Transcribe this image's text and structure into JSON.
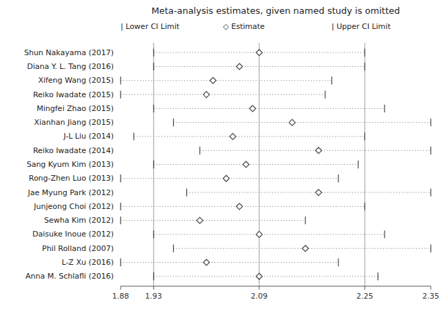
{
  "chart_data": {
    "type": "forest",
    "title": "Meta-analysis estimates, given named study is omitted",
    "categories": [
      "Shun Nakayama (2017)",
      "Diana Y. L. Tang (2016)",
      "Xifeng Wang (2015)",
      "Reiko Iwadate (2015)",
      "Mingfei Zhao (2015)",
      "Xianhan Jiang (2015)",
      "J-L Liu (2014)",
      "Reiko Iwadate (2014)",
      "Sang Kyum Kim (2013)",
      "Rong-Zhen Luo (2013)",
      "Jae Myung Park (2012)",
      "Junjeong Choi (2012)",
      "Sewha Kim (2012)",
      "Daisuke Inoue (2012)",
      "Phil Rolland (2007)",
      "L-Z Xu (2016)",
      "Anna M. Schlafli (2016)"
    ],
    "series": [
      {
        "name": "| Lower CI Limit",
        "marker": "tick",
        "color": "#444444",
        "values": [
          1.93,
          1.93,
          1.88,
          1.88,
          1.93,
          1.96,
          1.9,
          2.0,
          1.93,
          1.88,
          1.98,
          1.88,
          1.88,
          1.93,
          1.96,
          1.88,
          1.93
        ]
      },
      {
        "name": "◇ Estimate",
        "marker": "diamond",
        "color": "#444444",
        "values": [
          2.09,
          2.06,
          2.02,
          2.01,
          2.08,
          2.14,
          2.05,
          2.18,
          2.07,
          2.04,
          2.18,
          2.06,
          2.0,
          2.09,
          2.16,
          2.01,
          2.09
        ]
      },
      {
        "name": "| Upper CI Limit",
        "marker": "tick",
        "color": "#444444",
        "values": [
          2.25,
          2.25,
          2.2,
          2.19,
          2.28,
          2.35,
          2.25,
          2.35,
          2.24,
          2.21,
          2.35,
          2.25,
          2.16,
          2.28,
          2.35,
          2.21,
          2.27
        ]
      }
    ],
    "line_style": "dotted",
    "vlines": [
      1.93,
      2.09,
      2.25
    ],
    "xlim": [
      1.88,
      2.35
    ],
    "xticks": [
      1.88,
      1.93,
      2.09,
      2.25,
      2.35
    ]
  }
}
